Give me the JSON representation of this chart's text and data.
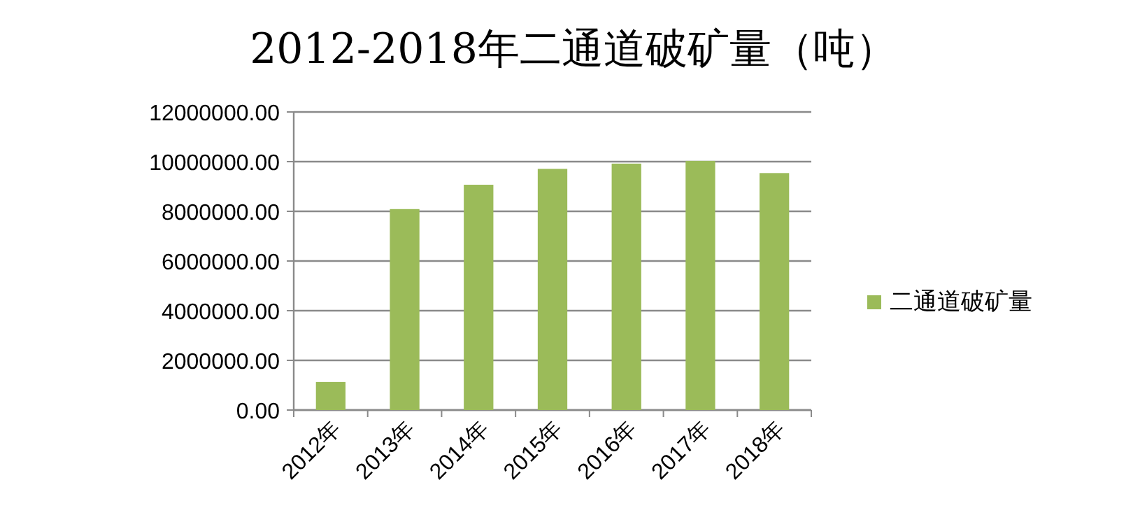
{
  "chart_data": {
    "type": "bar",
    "title": "2012-2018年二通道破矿量（吨）",
    "categories": [
      "2012年",
      "2013年",
      "2014年",
      "2015年",
      "2016年",
      "2017年",
      "2018年"
    ],
    "series": [
      {
        "name": "二通道破矿量",
        "color": "#9bbb59",
        "values": [
          1130000,
          8090000,
          9070000,
          9710000,
          9920000,
          10030000,
          9540000
        ]
      }
    ],
    "ylim": [
      0,
      12000000
    ],
    "yticks": [
      {
        "value": 0,
        "label": "0.00"
      },
      {
        "value": 2000000,
        "label": "2000000.00"
      },
      {
        "value": 4000000,
        "label": "4000000.00"
      },
      {
        "value": 6000000,
        "label": "6000000.00"
      },
      {
        "value": 8000000,
        "label": "8000000.00"
      },
      {
        "value": 10000000,
        "label": "10000000.00"
      },
      {
        "value": 12000000,
        "label": "12000000.00"
      }
    ],
    "grid": "y",
    "legend": "right"
  }
}
